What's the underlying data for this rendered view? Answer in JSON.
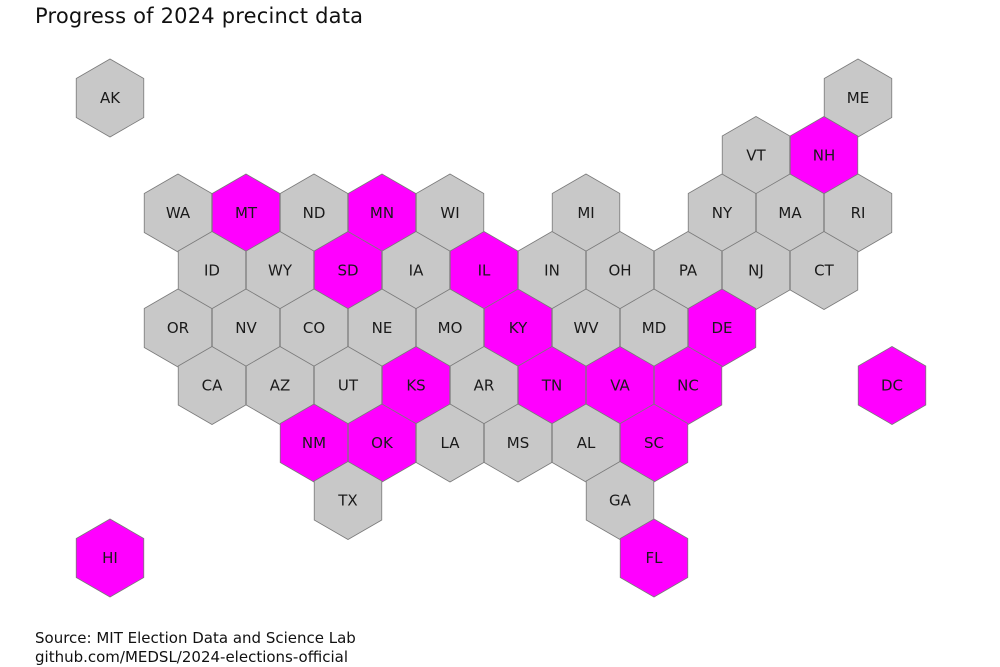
{
  "title": "Progress of 2024 precinct data",
  "source_lines": [
    "Source: MIT Election Data and Science Lab",
    "github.com/MEDSL/2024-elections-official"
  ],
  "colors": {
    "complete": "#ff00ff",
    "pending": "#c8c8c8",
    "stroke": "#7a7a7a"
  },
  "states": [
    {
      "abbr": "AK",
      "status": "pending",
      "row": 0,
      "col": 0
    },
    {
      "abbr": "ME",
      "status": "pending",
      "row": 0,
      "col": 11
    },
    {
      "abbr": "VT",
      "status": "pending",
      "row": 1,
      "col": 9.5
    },
    {
      "abbr": "NH",
      "status": "complete",
      "row": 1,
      "col": 10.5
    },
    {
      "abbr": "WA",
      "status": "pending",
      "row": 2,
      "col": 1
    },
    {
      "abbr": "MT",
      "status": "complete",
      "row": 2,
      "col": 2
    },
    {
      "abbr": "ND",
      "status": "pending",
      "row": 2,
      "col": 3
    },
    {
      "abbr": "MN",
      "status": "complete",
      "row": 2,
      "col": 4
    },
    {
      "abbr": "WI",
      "status": "pending",
      "row": 2,
      "col": 5
    },
    {
      "abbr": "MI",
      "status": "pending",
      "row": 2,
      "col": 7
    },
    {
      "abbr": "NY",
      "status": "pending",
      "row": 2,
      "col": 9
    },
    {
      "abbr": "MA",
      "status": "pending",
      "row": 2,
      "col": 10
    },
    {
      "abbr": "RI",
      "status": "pending",
      "row": 2,
      "col": 11
    },
    {
      "abbr": "ID",
      "status": "pending",
      "row": 3,
      "col": 1.5
    },
    {
      "abbr": "WY",
      "status": "pending",
      "row": 3,
      "col": 2.5
    },
    {
      "abbr": "SD",
      "status": "complete",
      "row": 3,
      "col": 3.5
    },
    {
      "abbr": "IA",
      "status": "pending",
      "row": 3,
      "col": 4.5
    },
    {
      "abbr": "IL",
      "status": "complete",
      "row": 3,
      "col": 5.5
    },
    {
      "abbr": "IN",
      "status": "pending",
      "row": 3,
      "col": 6.5
    },
    {
      "abbr": "OH",
      "status": "pending",
      "row": 3,
      "col": 7.5
    },
    {
      "abbr": "PA",
      "status": "pending",
      "row": 3,
      "col": 8.5
    },
    {
      "abbr": "NJ",
      "status": "pending",
      "row": 3,
      "col": 9.5
    },
    {
      "abbr": "CT",
      "status": "pending",
      "row": 3,
      "col": 10.5
    },
    {
      "abbr": "OR",
      "status": "pending",
      "row": 4,
      "col": 1
    },
    {
      "abbr": "NV",
      "status": "pending",
      "row": 4,
      "col": 2
    },
    {
      "abbr": "CO",
      "status": "pending",
      "row": 4,
      "col": 3
    },
    {
      "abbr": "NE",
      "status": "pending",
      "row": 4,
      "col": 4
    },
    {
      "abbr": "MO",
      "status": "pending",
      "row": 4,
      "col": 5
    },
    {
      "abbr": "KY",
      "status": "complete",
      "row": 4,
      "col": 6
    },
    {
      "abbr": "WV",
      "status": "pending",
      "row": 4,
      "col": 7
    },
    {
      "abbr": "MD",
      "status": "pending",
      "row": 4,
      "col": 8
    },
    {
      "abbr": "DE",
      "status": "complete",
      "row": 4,
      "col": 9
    },
    {
      "abbr": "CA",
      "status": "pending",
      "row": 5,
      "col": 1.5
    },
    {
      "abbr": "AZ",
      "status": "pending",
      "row": 5,
      "col": 2.5
    },
    {
      "abbr": "UT",
      "status": "pending",
      "row": 5,
      "col": 3.5
    },
    {
      "abbr": "KS",
      "status": "complete",
      "row": 5,
      "col": 4.5
    },
    {
      "abbr": "AR",
      "status": "pending",
      "row": 5,
      "col": 5.5
    },
    {
      "abbr": "TN",
      "status": "complete",
      "row": 5,
      "col": 6.5
    },
    {
      "abbr": "VA",
      "status": "complete",
      "row": 5,
      "col": 7.5
    },
    {
      "abbr": "NC",
      "status": "complete",
      "row": 5,
      "col": 8.5
    },
    {
      "abbr": "DC",
      "status": "complete",
      "row": 5,
      "col": 11.5
    },
    {
      "abbr": "NM",
      "status": "complete",
      "row": 6,
      "col": 3
    },
    {
      "abbr": "OK",
      "status": "complete",
      "row": 6,
      "col": 4
    },
    {
      "abbr": "LA",
      "status": "pending",
      "row": 6,
      "col": 5
    },
    {
      "abbr": "MS",
      "status": "pending",
      "row": 6,
      "col": 6
    },
    {
      "abbr": "AL",
      "status": "pending",
      "row": 6,
      "col": 7
    },
    {
      "abbr": "SC",
      "status": "complete",
      "row": 6,
      "col": 8
    },
    {
      "abbr": "TX",
      "status": "pending",
      "row": 7,
      "col": 3.5
    },
    {
      "abbr": "GA",
      "status": "pending",
      "row": 7,
      "col": 7.5
    },
    {
      "abbr": "HI",
      "status": "complete",
      "row": 8,
      "col": 0
    },
    {
      "abbr": "FL",
      "status": "complete",
      "row": 8,
      "col": 8
    }
  ]
}
